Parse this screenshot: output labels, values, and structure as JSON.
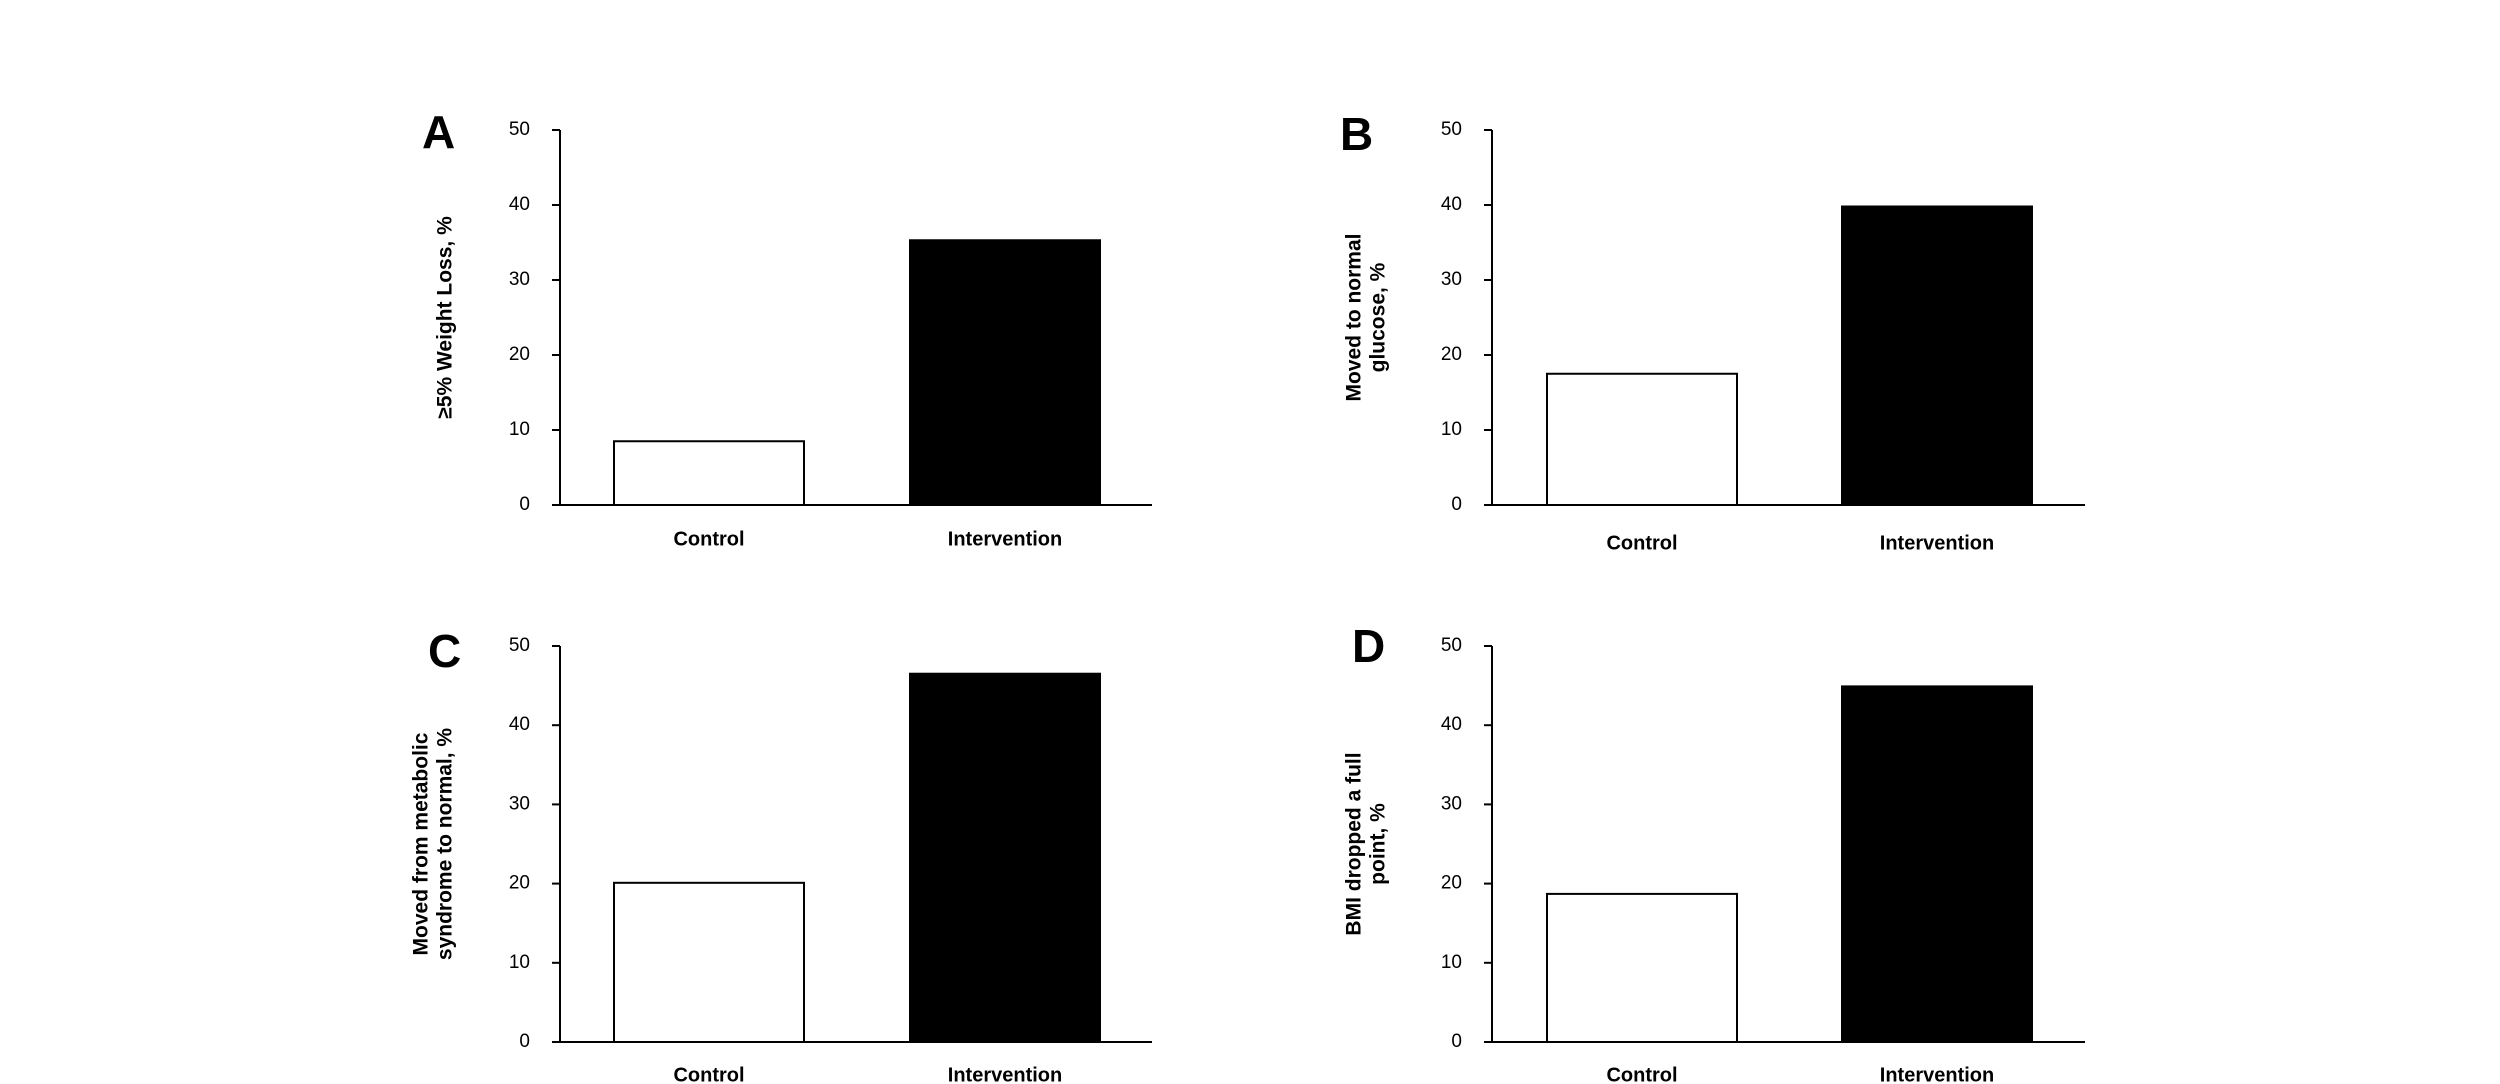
{
  "figure": {
    "colors": {
      "control_fill": "#ffffff",
      "intervention_fill": "#000000",
      "bar_stroke": "#000000"
    }
  },
  "chart_data": [
    {
      "panel": "A",
      "type": "bar",
      "categories": [
        "Control",
        "Intervention"
      ],
      "values": [
        8.5,
        35.3
      ],
      "ylabel": [
        "≥5% Weight Loss, %"
      ],
      "ylim": [
        0,
        50
      ],
      "yticks": [
        0,
        10,
        20,
        30,
        40,
        50
      ],
      "grid": false,
      "legend": "none"
    },
    {
      "panel": "B",
      "type": "bar",
      "categories": [
        "Control",
        "Intervention"
      ],
      "values": [
        17.5,
        39.8
      ],
      "ylabel": [
        "Moved to normal",
        "glucose, %"
      ],
      "ylim": [
        0,
        50
      ],
      "yticks": [
        0,
        10,
        20,
        30,
        40,
        50
      ],
      "grid": false,
      "legend": "none"
    },
    {
      "panel": "C",
      "type": "bar",
      "categories": [
        "Control",
        "Intervention"
      ],
      "values": [
        20.1,
        46.5
      ],
      "ylabel": [
        "Moved from metabolic",
        "syndrome to normal, %"
      ],
      "ylim": [
        0,
        50
      ],
      "yticks": [
        0,
        10,
        20,
        30,
        40,
        50
      ],
      "grid": false,
      "legend": "none"
    },
    {
      "panel": "D",
      "type": "bar",
      "categories": [
        "Control",
        "Intervention"
      ],
      "values": [
        18.7,
        44.9
      ],
      "ylabel": [
        "BMI dropped a full",
        "point, %"
      ],
      "ylim": [
        0,
        50
      ],
      "yticks": [
        0,
        10,
        20,
        30,
        40,
        50
      ],
      "grid": false,
      "legend": "none"
    }
  ]
}
